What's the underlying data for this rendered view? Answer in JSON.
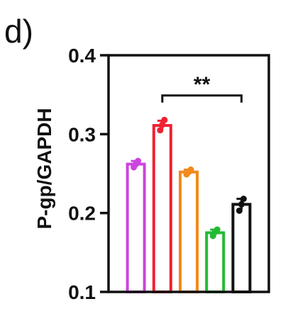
{
  "panel_label": "d)",
  "chart_data": {
    "type": "bar",
    "ylabel": "P-gp/GAPDH",
    "ylim": [
      0.1,
      0.4
    ],
    "yticks": [
      0.1,
      0.2,
      0.3,
      0.4
    ],
    "ytick_labels": [
      "0.1",
      "0.2",
      "0.3",
      "0.4"
    ],
    "grid": false,
    "bars": [
      {
        "value": 0.262,
        "error": 0.004,
        "color": "#cc44dd",
        "points": [
          0.258,
          0.262,
          0.266
        ]
      },
      {
        "value": 0.311,
        "error": 0.006,
        "color": "#ee2233",
        "points": [
          0.305,
          0.312,
          0.318
        ]
      },
      {
        "value": 0.252,
        "error": 0.003,
        "color": "#f28a1e",
        "points": [
          0.249,
          0.252,
          0.255
        ]
      },
      {
        "value": 0.175,
        "error": 0.004,
        "color": "#22bb33",
        "points": [
          0.171,
          0.176,
          0.179
        ]
      },
      {
        "value": 0.211,
        "error": 0.007,
        "color": "#111111",
        "points": [
          0.203,
          0.211,
          0.218
        ]
      }
    ],
    "significance": {
      "from_bar": 1,
      "to_bar": 4,
      "y": 0.349,
      "label": "**"
    }
  }
}
